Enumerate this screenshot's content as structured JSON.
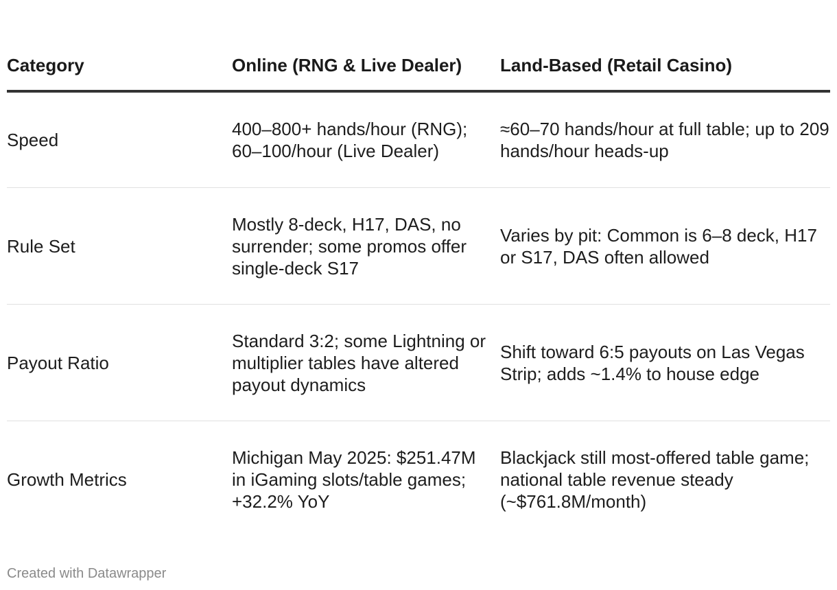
{
  "table": {
    "headers": [
      "Category",
      "Online (RNG & Live Dealer)",
      "Land-Based (Retail Casino)"
    ],
    "rows": [
      {
        "category": "Speed",
        "online": "400–800+ hands/hour (RNG); 60–100/hour (Live Dealer)",
        "land_based": "≈60–70 hands/hour at full table; up to 209 hands/hour heads-up"
      },
      {
        "category": "Rule Set",
        "online": "Mostly 8-deck, H17, DAS, no surrender; some promos offer single-deck S17",
        "land_based": "Varies by pit: Common is 6–8 deck, H17 or S17, DAS often allowed"
      },
      {
        "category": "Payout Ratio",
        "online": "Standard 3:2; some Lightning or multiplier tables have altered payout dynamics",
        "land_based": "Shift toward 6:5 payouts on Las Vegas Strip; adds ~1.4% to house edge"
      },
      {
        "category": "Growth Metrics",
        "online": "Michigan May 2025: $251.47M in iGaming slots/table games; +32.2% YoY",
        "land_based": "Blackjack still most-offered table game; national table revenue steady (~$761.8M/month)"
      }
    ]
  },
  "footer": {
    "credit": "Created with Datawrapper"
  }
}
